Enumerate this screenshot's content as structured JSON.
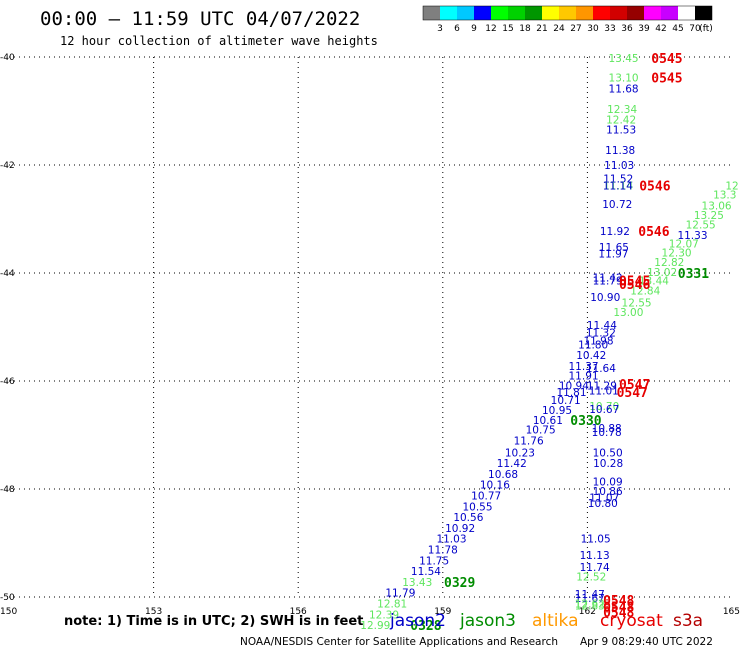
{
  "header": {
    "title": "00:00 – 11:59 UTC 04/07/2022",
    "subtitle": "12 hour collection of altimeter wave heights"
  },
  "colorbar": {
    "colors": [
      "#7f7f7f",
      "#00ffff",
      "#00c8ff",
      "#0000ff",
      "#00ff00",
      "#00d200",
      "#009600",
      "#ffff00",
      "#ffc800",
      "#ff9600",
      "#ff0000",
      "#d20000",
      "#960000",
      "#ff00ff",
      "#c800ff",
      "#ffffff",
      "#000000"
    ],
    "labels": [
      "3",
      "6",
      "9",
      "12",
      "15",
      "18",
      "21",
      "24",
      "27",
      "30",
      "33",
      "36",
      "39",
      "42",
      "45",
      "70"
    ],
    "unit": "(ft)"
  },
  "footer": {
    "note": "note:  1) Time is in UTC; 2) SWH is in feet",
    "satellites": [
      {
        "name": "jason2",
        "color": "#0000c8"
      },
      {
        "name": "jason3",
        "color": "#008c00"
      },
      {
        "name": "altika",
        "color": "#ff9900"
      },
      {
        "name": "cryosat",
        "color": "#e60000"
      },
      {
        "name": "s3a",
        "color": "#b40000"
      }
    ],
    "credit": "NOAA/NESDIS Center for Satellite Applications and Research",
    "timestamp": "Apr  9 08:29:40 UTC 2022"
  },
  "chart_data": {
    "type": "scatter",
    "xlim": [
      150,
      165
    ],
    "ylim": [
      -50,
      -40
    ],
    "x_ticks": [
      {
        "value": 150,
        "label": "150"
      },
      {
        "value": 153,
        "label": "153"
      },
      {
        "value": 156,
        "label": "156"
      },
      {
        "value": 159,
        "label": "159"
      },
      {
        "value": 162,
        "label": "162"
      },
      {
        "value": 165,
        "label": "165"
      }
    ],
    "y_ticks": [
      {
        "value": -40,
        "label": "-40"
      },
      {
        "value": -42,
        "label": "-42"
      },
      {
        "value": -44,
        "label": "-44"
      },
      {
        "value": -46,
        "label": "-46"
      },
      {
        "value": -48,
        "label": "-48"
      },
      {
        "value": -50,
        "label": "-50"
      }
    ],
    "grid": true,
    "wave_heights": [
      {
        "lon": 162.75,
        "lat": -40.02,
        "swh": "13.45",
        "color": "#5ee65e"
      },
      {
        "lon": 162.75,
        "lat": -40.38,
        "swh": "13.10",
        "color": "#5ee65e"
      },
      {
        "lon": 162.75,
        "lat": -40.58,
        "swh": "11.68",
        "color": "#0000c8"
      },
      {
        "lon": 162.72,
        "lat": -40.96,
        "swh": "12.34",
        "color": "#5ee65e"
      },
      {
        "lon": 162.7,
        "lat": -41.16,
        "swh": "12.42",
        "color": "#5ee65e"
      },
      {
        "lon": 162.7,
        "lat": -41.34,
        "swh": "11.53",
        "color": "#0000c8"
      },
      {
        "lon": 162.68,
        "lat": -41.72,
        "swh": "11.38",
        "color": "#0000c8"
      },
      {
        "lon": 162.66,
        "lat": -42.0,
        "swh": "11.03",
        "color": "#0000c8"
      },
      {
        "lon": 162.64,
        "lat": -42.25,
        "swh": "11.52",
        "color": "#0000c8"
      },
      {
        "lon": 162.64,
        "lat": -42.38,
        "swh": "11.14",
        "color": "#5ee65e"
      },
      {
        "lon": 162.63,
        "lat": -42.38,
        "swh": "11.14",
        "color": "#0000c8"
      },
      {
        "lon": 162.62,
        "lat": -42.72,
        "swh": "10.72",
        "color": "#0000c8"
      },
      {
        "lon": 162.57,
        "lat": -43.22,
        "swh": "11.92",
        "color": "#0000c8"
      },
      {
        "lon": 162.55,
        "lat": -43.52,
        "swh": "11.65",
        "color": "#0000c8"
      },
      {
        "lon": 162.54,
        "lat": -43.64,
        "swh": "11.97",
        "color": "#0000c8"
      },
      {
        "lon": 165.0,
        "lat": -42.38,
        "swh": "12",
        "color": "#5ee65e"
      },
      {
        "lon": 164.85,
        "lat": -42.55,
        "swh": "13.3",
        "color": "#5ee65e"
      },
      {
        "lon": 164.68,
        "lat": -42.75,
        "swh": "13.06",
        "color": "#5ee65e"
      },
      {
        "lon": 164.52,
        "lat": -42.93,
        "swh": "13.25",
        "color": "#5ee65e"
      },
      {
        "lon": 164.35,
        "lat": -43.1,
        "swh": "12.55",
        "color": "#5ee65e"
      },
      {
        "lon": 164.18,
        "lat": -43.3,
        "swh": "11.33",
        "color": "#0000c8"
      },
      {
        "lon": 164.0,
        "lat": -43.45,
        "swh": "12.07",
        "color": "#5ee65e"
      },
      {
        "lon": 163.85,
        "lat": -43.62,
        "swh": "12.30",
        "color": "#5ee65e"
      },
      {
        "lon": 163.7,
        "lat": -43.8,
        "swh": "12.82",
        "color": "#5ee65e"
      },
      {
        "lon": 163.55,
        "lat": -43.98,
        "swh": "13.02",
        "color": "#5ee65e"
      },
      {
        "lon": 162.42,
        "lat": -44.08,
        "swh": "11.42",
        "color": "#0000c8"
      },
      {
        "lon": 162.42,
        "lat": -44.14,
        "swh": "11.79",
        "color": "#0000c8"
      },
      {
        "lon": 163.38,
        "lat": -44.14,
        "swh": "13.44",
        "color": "#5ee65e"
      },
      {
        "lon": 163.2,
        "lat": -44.32,
        "swh": "12.84",
        "color": "#5ee65e"
      },
      {
        "lon": 162.37,
        "lat": -44.44,
        "swh": "10.90",
        "color": "#0000c8"
      },
      {
        "lon": 163.02,
        "lat": -44.55,
        "swh": "12.55",
        "color": "#5ee65e"
      },
      {
        "lon": 162.85,
        "lat": -44.72,
        "swh": "13.00",
        "color": "#5ee65e"
      },
      {
        "lon": 162.3,
        "lat": -44.96,
        "swh": "11.44",
        "color": "#0000c8"
      },
      {
        "lon": 162.28,
        "lat": -45.1,
        "swh": "11.32",
        "color": "#0000c8"
      },
      {
        "lon": 162.23,
        "lat": -45.25,
        "swh": "11.98",
        "color": "#0000c8"
      },
      {
        "lon": 162.12,
        "lat": -45.32,
        "swh": "11.80",
        "color": "#0000c8"
      },
      {
        "lon": 162.08,
        "lat": -45.52,
        "swh": "10.42",
        "color": "#0000c8"
      },
      {
        "lon": 161.92,
        "lat": -45.72,
        "swh": "11.37",
        "color": "#0000c8"
      },
      {
        "lon": 162.28,
        "lat": -45.76,
        "swh": "11.64",
        "color": "#0000c8"
      },
      {
        "lon": 161.92,
        "lat": -45.9,
        "swh": "11.91",
        "color": "#0000c8"
      },
      {
        "lon": 161.72,
        "lat": -46.08,
        "swh": "10.94",
        "color": "#0000c8"
      },
      {
        "lon": 162.3,
        "lat": -46.08,
        "swh": "11.29",
        "color": "#0000c8"
      },
      {
        "lon": 161.67,
        "lat": -46.2,
        "swh": "11.81",
        "color": "#0000c8"
      },
      {
        "lon": 162.34,
        "lat": -46.18,
        "swh": "11.01",
        "color": "#0000c8"
      },
      {
        "lon": 161.55,
        "lat": -46.35,
        "swh": "10.71",
        "color": "#0000c8"
      },
      {
        "lon": 162.35,
        "lat": -46.46,
        "swh": "10.70",
        "color": "#5ee65e"
      },
      {
        "lon": 162.35,
        "lat": -46.52,
        "swh": "10.67",
        "color": "#0000c8"
      },
      {
        "lon": 161.37,
        "lat": -46.54,
        "swh": "10.95",
        "color": "#0000c8"
      },
      {
        "lon": 161.18,
        "lat": -46.72,
        "swh": "10.61",
        "color": "#0000c8"
      },
      {
        "lon": 161.03,
        "lat": -46.9,
        "swh": "10.75",
        "color": "#0000c8"
      },
      {
        "lon": 162.4,
        "lat": -46.87,
        "swh": "10.88",
        "color": "#0000c8"
      },
      {
        "lon": 162.4,
        "lat": -46.94,
        "swh": "10.78",
        "color": "#0000c8"
      },
      {
        "lon": 160.78,
        "lat": -47.1,
        "swh": "11.76",
        "color": "#0000c8"
      },
      {
        "lon": 160.6,
        "lat": -47.32,
        "swh": "10.23",
        "color": "#0000c8"
      },
      {
        "lon": 162.42,
        "lat": -47.32,
        "swh": "10.50",
        "color": "#0000c8"
      },
      {
        "lon": 160.43,
        "lat": -47.52,
        "swh": "11.42",
        "color": "#0000c8"
      },
      {
        "lon": 162.43,
        "lat": -47.52,
        "swh": "10.28",
        "color": "#0000c8"
      },
      {
        "lon": 160.25,
        "lat": -47.72,
        "swh": "10.68",
        "color": "#0000c8"
      },
      {
        "lon": 162.42,
        "lat": -47.86,
        "swh": "10.09",
        "color": "#0000c8"
      },
      {
        "lon": 160.08,
        "lat": -47.92,
        "swh": "10.16",
        "color": "#0000c8"
      },
      {
        "lon": 162.42,
        "lat": -48.04,
        "swh": "10.86",
        "color": "#0000c8"
      },
      {
        "lon": 162.35,
        "lat": -48.16,
        "swh": "11.07",
        "color": "#0000c8"
      },
      {
        "lon": 159.9,
        "lat": -48.12,
        "swh": "10.77",
        "color": "#0000c8"
      },
      {
        "lon": 162.32,
        "lat": -48.26,
        "swh": "10.80",
        "color": "#0000c8"
      },
      {
        "lon": 159.72,
        "lat": -48.32,
        "swh": "10.55",
        "color": "#0000c8"
      },
      {
        "lon": 159.53,
        "lat": -48.52,
        "swh": "10.56",
        "color": "#0000c8"
      },
      {
        "lon": 159.36,
        "lat": -48.72,
        "swh": "10.92",
        "color": "#0000c8"
      },
      {
        "lon": 159.18,
        "lat": -48.92,
        "swh": "11.03",
        "color": "#0000c8"
      },
      {
        "lon": 162.17,
        "lat": -48.92,
        "swh": "11.05",
        "color": "#0000c8"
      },
      {
        "lon": 159.0,
        "lat": -49.12,
        "swh": "11.78",
        "color": "#0000c8"
      },
      {
        "lon": 162.15,
        "lat": -49.22,
        "swh": "11.13",
        "color": "#0000c8"
      },
      {
        "lon": 158.82,
        "lat": -49.32,
        "swh": "11.75",
        "color": "#0000c8"
      },
      {
        "lon": 162.15,
        "lat": -49.44,
        "swh": "11.74",
        "color": "#0000c8"
      },
      {
        "lon": 158.65,
        "lat": -49.52,
        "swh": "11.54",
        "color": "#0000c8"
      },
      {
        "lon": 162.08,
        "lat": -49.62,
        "swh": "12.52",
        "color": "#5ee65e"
      },
      {
        "lon": 158.47,
        "lat": -49.72,
        "swh": "13.43",
        "color": "#5ee65e"
      },
      {
        "lon": 158.12,
        "lat": -49.92,
        "swh": "11.79",
        "color": "#0000c8"
      },
      {
        "lon": 162.05,
        "lat": -49.94,
        "swh": "11.47",
        "color": "#0000c8"
      },
      {
        "lon": 162.05,
        "lat": -50.02,
        "swh": "11.67",
        "color": "#0000c8"
      },
      {
        "lon": 162.05,
        "lat": -50.12,
        "swh": "12.62",
        "color": "#5ee65e"
      },
      {
        "lon": 162.05,
        "lat": -50.16,
        "swh": "12.83",
        "color": "#5ee65e"
      },
      {
        "lon": 157.95,
        "lat": -50.12,
        "swh": "12.81",
        "color": "#5ee65e"
      },
      {
        "lon": 157.78,
        "lat": -50.32,
        "swh": "12.39",
        "color": "#5ee65e"
      },
      {
        "lon": 157.6,
        "lat": -50.52,
        "swh": "12.99",
        "color": "#5ee65e"
      }
    ],
    "pass_times": [
      {
        "lon": 163.65,
        "lat": -40.02,
        "time": "0545",
        "color": "#e60000"
      },
      {
        "lon": 163.65,
        "lat": -40.38,
        "time": "0545",
        "color": "#e60000"
      },
      {
        "lon": 163.4,
        "lat": -42.38,
        "time": "0546",
        "color": "#e60000"
      },
      {
        "lon": 163.38,
        "lat": -43.22,
        "time": "0546",
        "color": "#e60000"
      },
      {
        "lon": 164.2,
        "lat": -44.0,
        "time": "0331",
        "color": "#008c00"
      },
      {
        "lon": 162.98,
        "lat": -44.14,
        "time": "0545",
        "color": "#e60000"
      },
      {
        "lon": 162.98,
        "lat": -44.2,
        "time": "0546",
        "color": "#e60000"
      },
      {
        "lon": 162.98,
        "lat": -46.06,
        "time": "0547",
        "color": "#e60000"
      },
      {
        "lon": 162.93,
        "lat": -46.2,
        "time": "0547",
        "color": "#e60000"
      },
      {
        "lon": 161.97,
        "lat": -46.72,
        "time": "0330",
        "color": "#008c00"
      },
      {
        "lon": 159.35,
        "lat": -49.72,
        "time": "0329",
        "color": "#008c00"
      },
      {
        "lon": 162.65,
        "lat": -50.06,
        "time": "0548",
        "color": "#e60000"
      },
      {
        "lon": 162.65,
        "lat": -50.18,
        "time": "0548",
        "color": "#e60000"
      },
      {
        "lon": 162.65,
        "lat": -50.28,
        "time": "0548",
        "color": "#e60000"
      },
      {
        "lon": 158.65,
        "lat": -50.52,
        "time": "0328",
        "color": "#008c00"
      }
    ]
  }
}
